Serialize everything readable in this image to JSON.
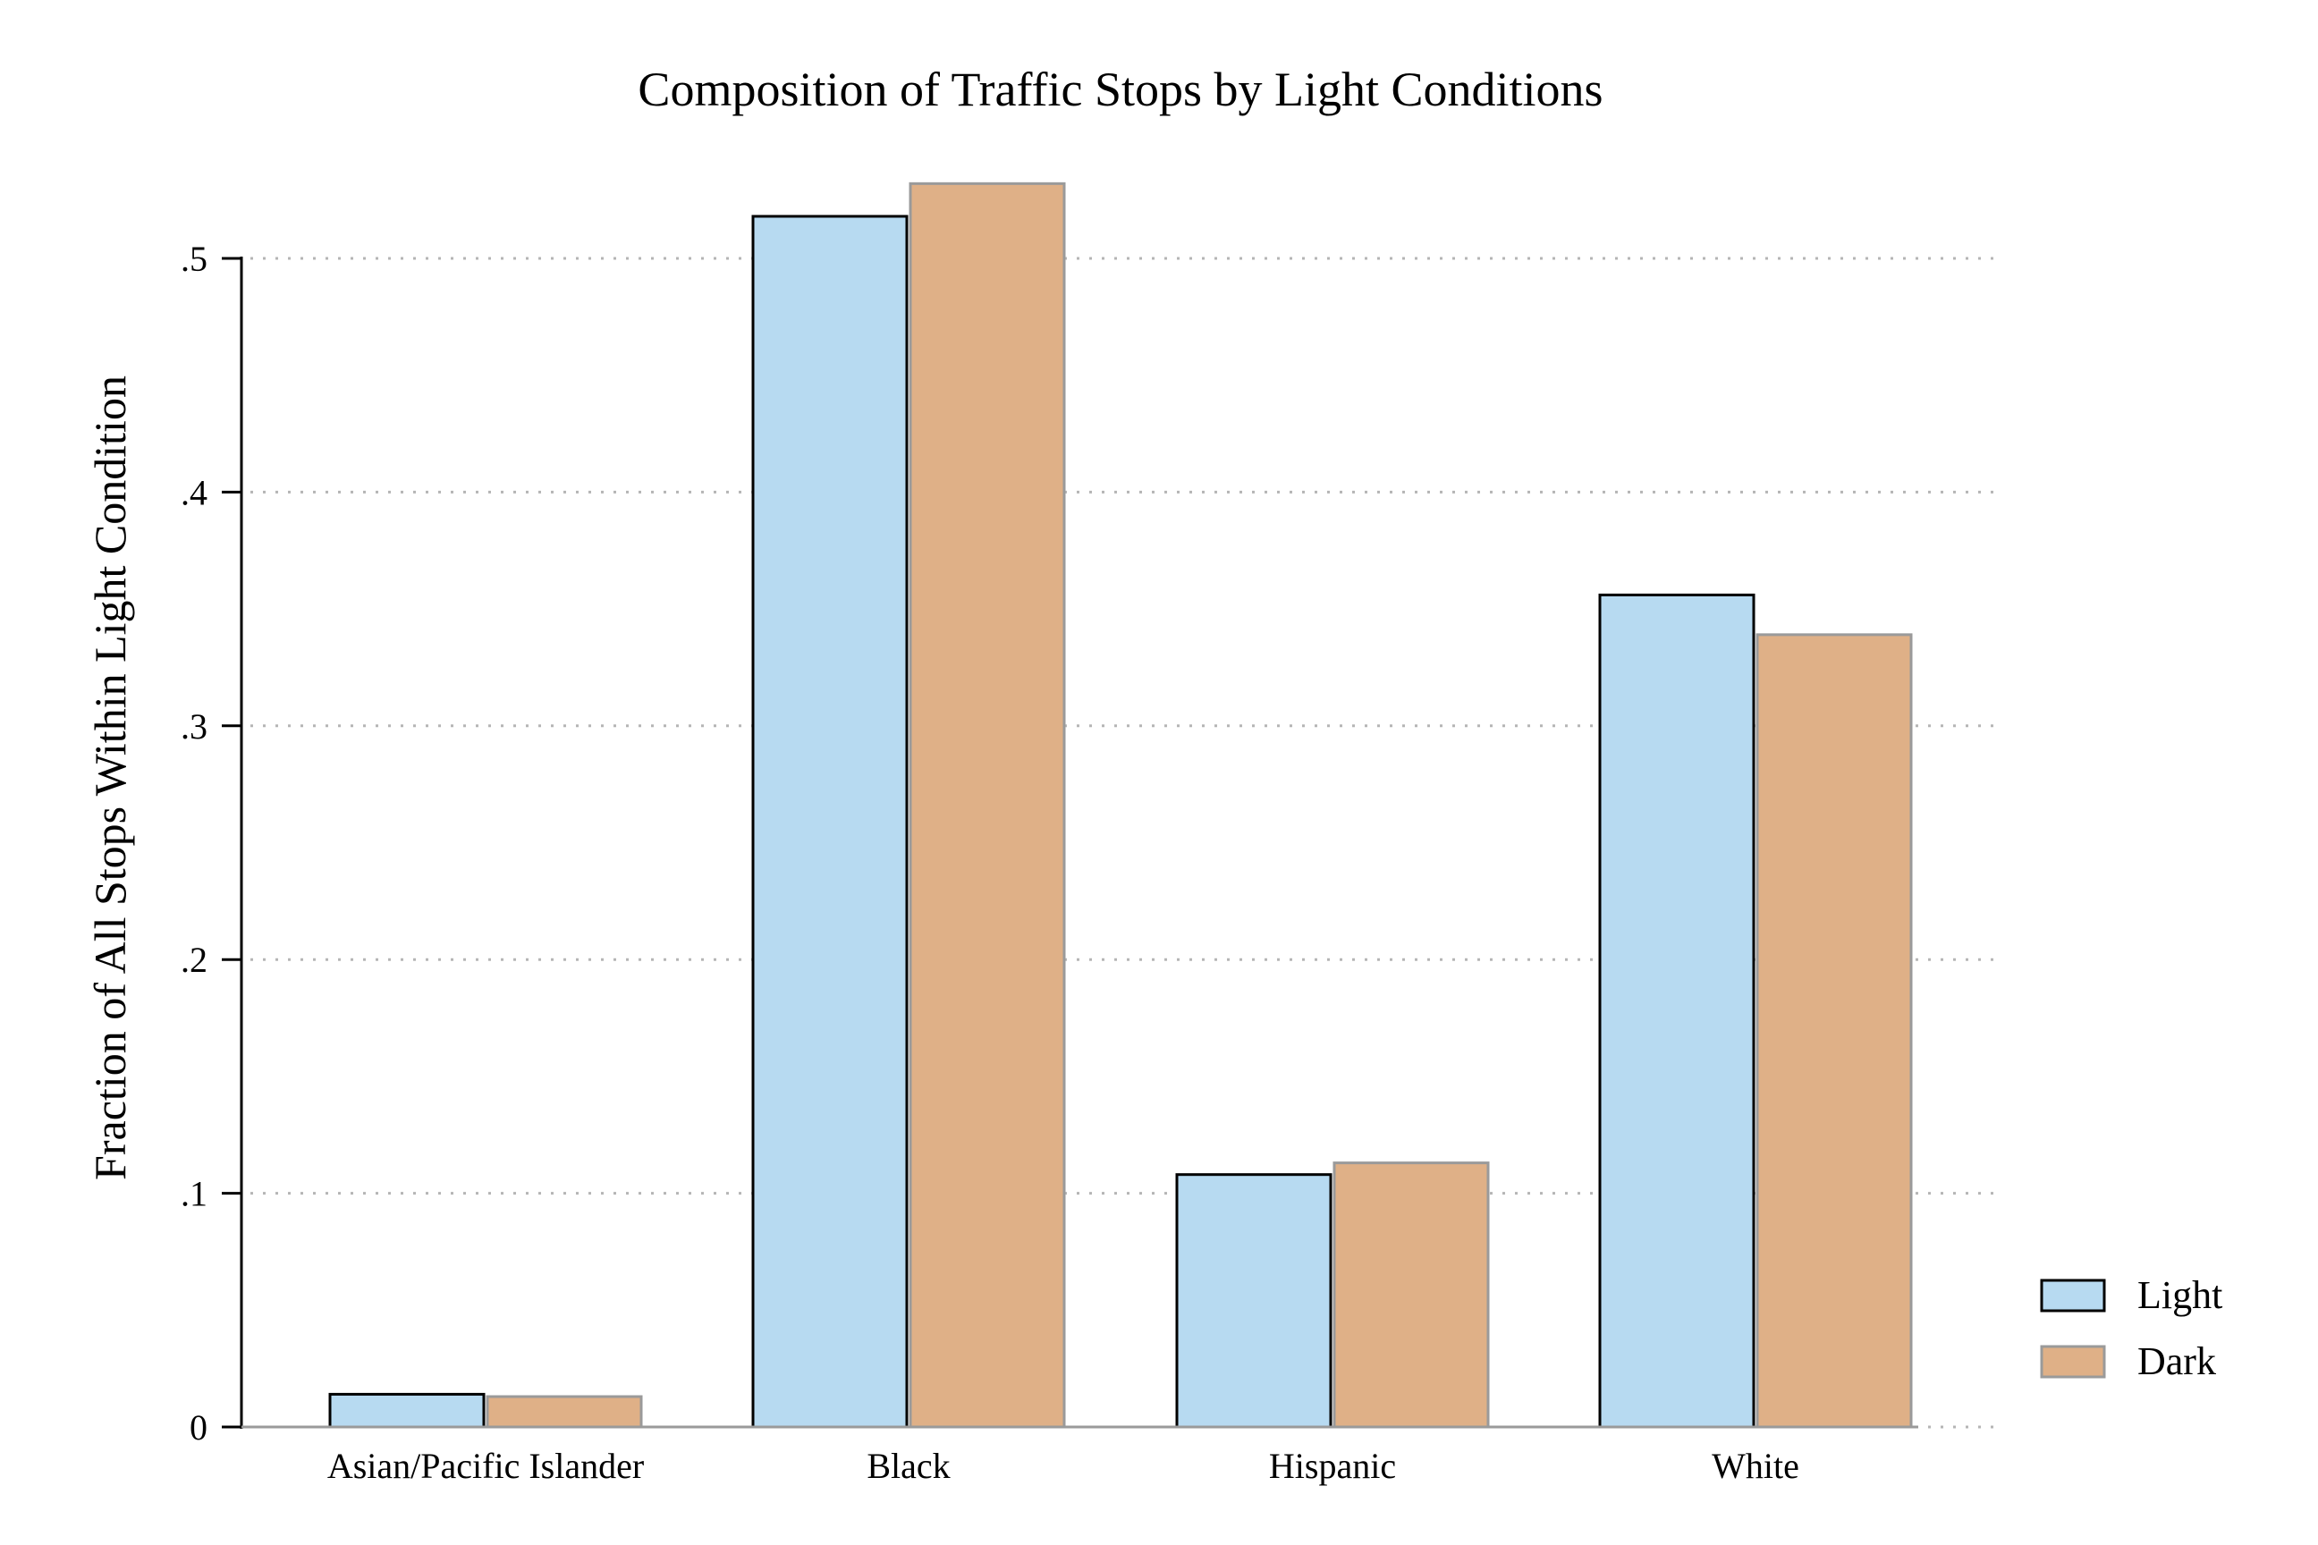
{
  "chart_data": {
    "type": "bar",
    "title": "Composition of Traffic Stops by Light Conditions",
    "xlabel": "",
    "ylabel": "Fraction of All Stops Within Light Condition",
    "categories": [
      "Asian/Pacific Islander",
      "Black",
      "Hispanic",
      "White"
    ],
    "series": [
      {
        "name": "Light",
        "values": [
          0.014,
          0.518,
          0.108,
          0.356
        ],
        "color": "#b7daf1",
        "stroke": "#000000"
      },
      {
        "name": "Dark",
        "values": [
          0.013,
          0.532,
          0.113,
          0.339
        ],
        "color": "#dfb087",
        "stroke": "#9a9a9a"
      }
    ],
    "ylim": [
      0,
      0.5
    ],
    "yticks": [
      0,
      0.1,
      0.2,
      0.3,
      0.4,
      0.5
    ],
    "ytick_labels": [
      "0",
      ".1",
      ".2",
      ".3",
      ".4",
      ".5"
    ],
    "grid": true,
    "legend_position": "right"
  }
}
